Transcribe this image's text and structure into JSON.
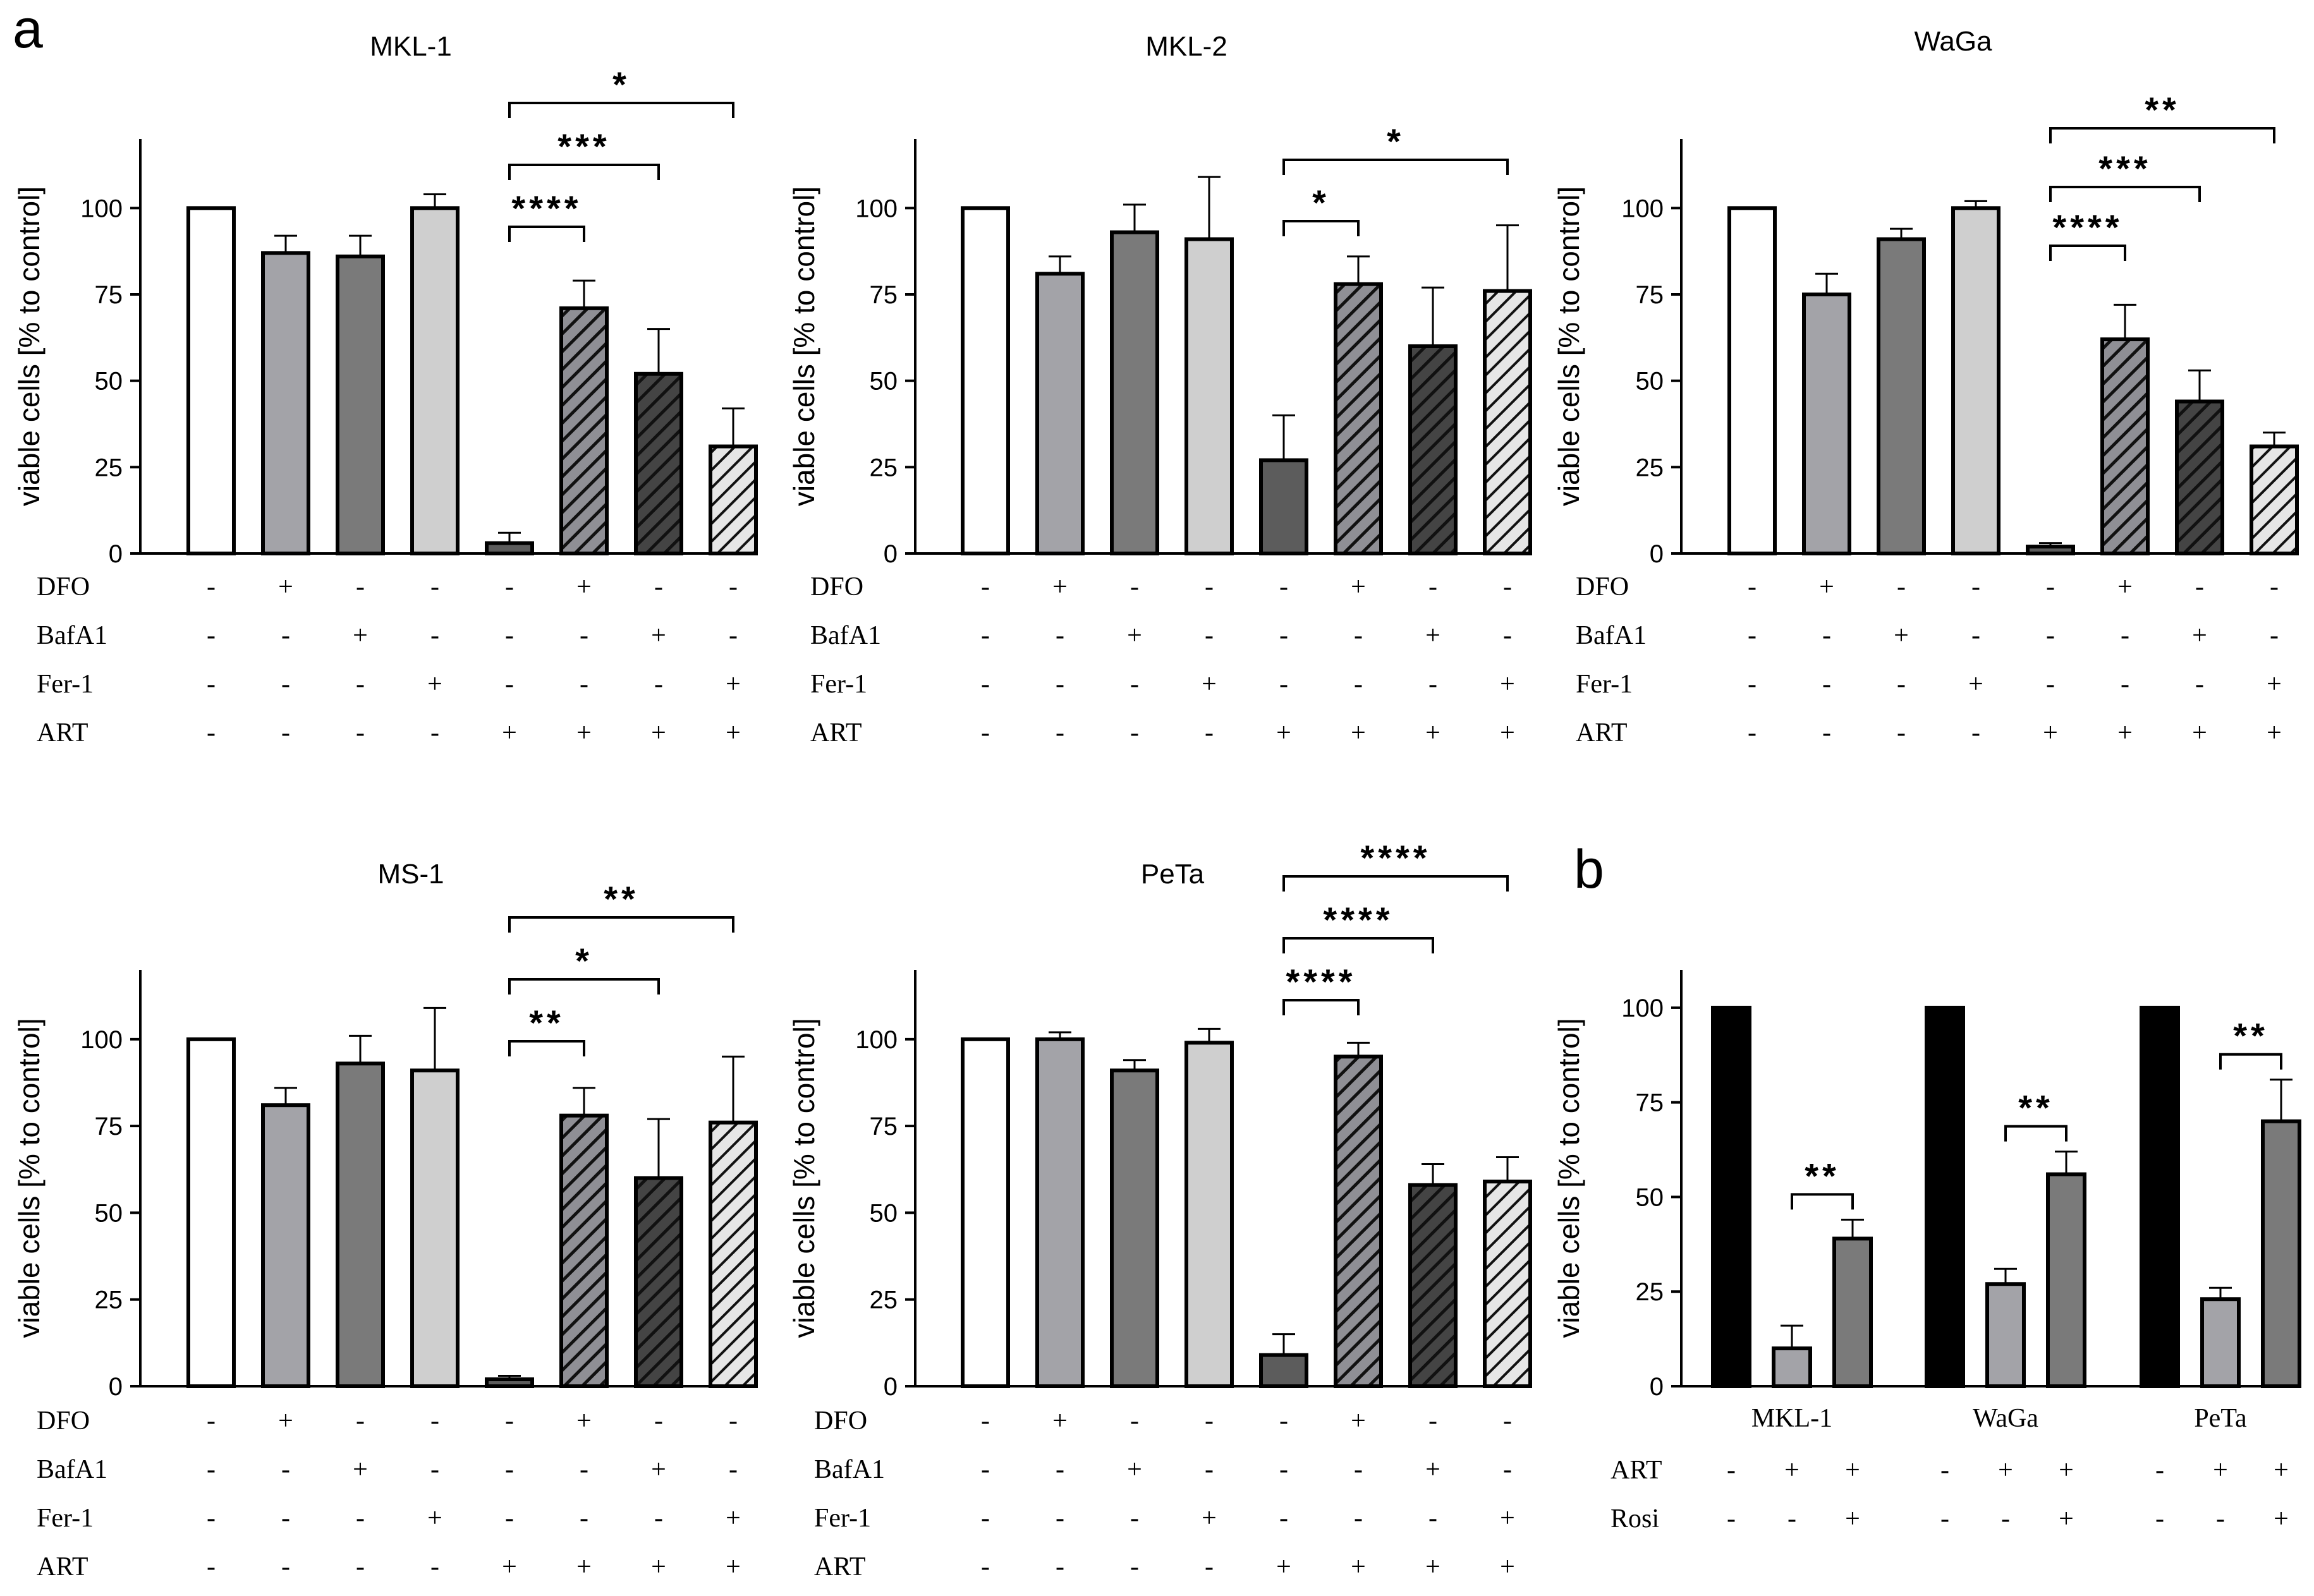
{
  "figure": {
    "panel_labels": [
      "a",
      "b"
    ],
    "colors": {
      "ink": "#000000",
      "white_bar": "#ffffff",
      "light_gray": "#cfcfcf",
      "mid_gray": "#a3a3a8",
      "dark_gray": "#7a7a7a",
      "darker_gray": "#5c5c5c",
      "black_bar": "#000000",
      "hatch_mid": "#8f8f95",
      "hatch_dark": "#444444",
      "hatch_light": "#e2e2e2"
    }
  },
  "chart_data": [
    {
      "panel": "a",
      "type": "bar",
      "title": "MKL-1",
      "ylabel": "viable cells [% to control]",
      "ylim": [
        0,
        120
      ],
      "yticks": [
        0,
        25,
        50,
        75,
        100
      ],
      "conditions": [
        "DFO",
        "BafA1",
        "Fer-1",
        "ART"
      ],
      "condition_signs": [
        [
          "-",
          "+",
          "-",
          "-",
          "-",
          "+",
          "-",
          "-"
        ],
        [
          "-",
          "-",
          "+",
          "-",
          "-",
          "-",
          "+",
          "-"
        ],
        [
          "-",
          "-",
          "-",
          "+",
          "-",
          "-",
          "-",
          "+"
        ],
        [
          "-",
          "-",
          "-",
          "-",
          "+",
          "+",
          "+",
          "+"
        ]
      ],
      "values": [
        100,
        87,
        86,
        100,
        3,
        71,
        52,
        31
      ],
      "errors": [
        0,
        5,
        6,
        4,
        3,
        8,
        13,
        11
      ],
      "bar_styles": [
        "white",
        "mid",
        "dark",
        "light",
        "darker",
        "hatch-mid",
        "hatch-dark",
        "hatch-light"
      ],
      "significance": [
        {
          "from": 4,
          "to": 5,
          "label": "****"
        },
        {
          "from": 4,
          "to": 6,
          "label": "***"
        },
        {
          "from": 4,
          "to": 7,
          "label": "*"
        }
      ]
    },
    {
      "panel": "a",
      "type": "bar",
      "title": "MKL-2",
      "ylabel": "viable cells [% to control]",
      "ylim": [
        0,
        120
      ],
      "yticks": [
        0,
        25,
        50,
        75,
        100
      ],
      "conditions": [
        "DFO",
        "BafA1",
        "Fer-1",
        "ART"
      ],
      "condition_signs": [
        [
          "-",
          "+",
          "-",
          "-",
          "-",
          "+",
          "-",
          "-"
        ],
        [
          "-",
          "-",
          "+",
          "-",
          "-",
          "-",
          "+",
          "-"
        ],
        [
          "-",
          "-",
          "-",
          "+",
          "-",
          "-",
          "-",
          "+"
        ],
        [
          "-",
          "-",
          "-",
          "-",
          "+",
          "+",
          "+",
          "+"
        ]
      ],
      "values": [
        100,
        81,
        93,
        91,
        27,
        78,
        60,
        76
      ],
      "errors": [
        0,
        5,
        8,
        18,
        13,
        8,
        17,
        19
      ],
      "bar_styles": [
        "white",
        "mid",
        "dark",
        "light",
        "darker",
        "hatch-mid",
        "hatch-dark",
        "hatch-light"
      ],
      "significance": [
        {
          "from": 4,
          "to": 5,
          "label": "*"
        },
        {
          "from": 4,
          "to": 7,
          "label": "*"
        }
      ]
    },
    {
      "panel": "a",
      "type": "bar",
      "title": "WaGa",
      "ylabel": "viable cells [% to control]",
      "ylim": [
        0,
        120
      ],
      "yticks": [
        0,
        25,
        50,
        75,
        100
      ],
      "conditions": [
        "DFO",
        "BafA1",
        "Fer-1",
        "ART"
      ],
      "condition_signs": [
        [
          "-",
          "+",
          "-",
          "-",
          "-",
          "+",
          "-",
          "-"
        ],
        [
          "-",
          "-",
          "+",
          "-",
          "-",
          "-",
          "+",
          "-"
        ],
        [
          "-",
          "-",
          "-",
          "+",
          "-",
          "-",
          "-",
          "+"
        ],
        [
          "-",
          "-",
          "-",
          "-",
          "+",
          "+",
          "+",
          "+"
        ]
      ],
      "values": [
        100,
        75,
        91,
        100,
        2,
        62,
        44,
        31
      ],
      "errors": [
        0,
        6,
        3,
        2,
        1,
        10,
        9,
        4
      ],
      "bar_styles": [
        "white",
        "mid",
        "dark",
        "light",
        "darker",
        "hatch-mid",
        "hatch-dark",
        "hatch-light"
      ],
      "significance": [
        {
          "from": 4,
          "to": 5,
          "label": "****"
        },
        {
          "from": 4,
          "to": 6,
          "label": "***"
        },
        {
          "from": 4,
          "to": 7,
          "label": "**"
        }
      ]
    },
    {
      "panel": "a",
      "type": "bar",
      "title": "MS-1",
      "ylabel": "viable cells [% to control]",
      "ylim": [
        0,
        120
      ],
      "yticks": [
        0,
        25,
        50,
        75,
        100
      ],
      "conditions": [
        "DFO",
        "BafA1",
        "Fer-1",
        "ART"
      ],
      "condition_signs": [
        [
          "-",
          "+",
          "-",
          "-",
          "-",
          "+",
          "-",
          "-"
        ],
        [
          "-",
          "-",
          "+",
          "-",
          "-",
          "-",
          "+",
          "-"
        ],
        [
          "-",
          "-",
          "-",
          "+",
          "-",
          "-",
          "-",
          "+"
        ],
        [
          "-",
          "-",
          "-",
          "-",
          "+",
          "+",
          "+",
          "+"
        ]
      ],
      "values": [
        100,
        81,
        93,
        91,
        2,
        78,
        60,
        76
      ],
      "errors": [
        0,
        5,
        8,
        18,
        1,
        8,
        17,
        19
      ],
      "bar_styles": [
        "white",
        "mid",
        "dark",
        "light",
        "darker",
        "hatch-mid",
        "hatch-dark",
        "hatch-light"
      ],
      "significance": [
        {
          "from": 4,
          "to": 5,
          "label": "**"
        },
        {
          "from": 4,
          "to": 6,
          "label": "*"
        },
        {
          "from": 4,
          "to": 7,
          "label": "**"
        }
      ]
    },
    {
      "panel": "a",
      "type": "bar",
      "title": "PeTa",
      "ylabel": "viable cells [% to control]",
      "ylim": [
        0,
        120
      ],
      "yticks": [
        0,
        25,
        50,
        75,
        100
      ],
      "conditions": [
        "DFO",
        "BafA1",
        "Fer-1",
        "ART"
      ],
      "condition_signs": [
        [
          "-",
          "+",
          "-",
          "-",
          "-",
          "+",
          "-",
          "-"
        ],
        [
          "-",
          "-",
          "+",
          "-",
          "-",
          "-",
          "+",
          "-"
        ],
        [
          "-",
          "-",
          "-",
          "+",
          "-",
          "-",
          "-",
          "+"
        ],
        [
          "-",
          "-",
          "-",
          "-",
          "+",
          "+",
          "+",
          "+"
        ]
      ],
      "values": [
        100,
        100,
        91,
        99,
        9,
        95,
        58,
        59
      ],
      "errors": [
        0,
        2,
        3,
        4,
        6,
        4,
        6,
        7
      ],
      "bar_styles": [
        "white",
        "mid",
        "dark",
        "light",
        "darker",
        "hatch-mid",
        "hatch-dark",
        "hatch-light"
      ],
      "significance": [
        {
          "from": 4,
          "to": 5,
          "label": "****"
        },
        {
          "from": 4,
          "to": 6,
          "label": "****"
        },
        {
          "from": 4,
          "to": 7,
          "label": "****"
        }
      ]
    },
    {
      "panel": "b",
      "type": "bar",
      "title": "",
      "ylabel": "viable cells [% to control]",
      "ylim": [
        0,
        110
      ],
      "yticks": [
        0,
        25,
        50,
        75,
        100
      ],
      "groups": [
        "MKL-1",
        "WaGa",
        "PeTa"
      ],
      "conditions": [
        "ART",
        "Rosi"
      ],
      "condition_signs": [
        [
          "-",
          "+",
          "+",
          "-",
          "+",
          "+",
          "-",
          "+",
          "+"
        ],
        [
          "-",
          "-",
          "+",
          "-",
          "-",
          "+",
          "-",
          "-",
          "+"
        ]
      ],
      "values": [
        100,
        10,
        39,
        100,
        27,
        56,
        100,
        23,
        70
      ],
      "errors": [
        0,
        6,
        5,
        0,
        4,
        6,
        0,
        3,
        11
      ],
      "bar_styles": [
        "black",
        "mid",
        "darkb",
        "black",
        "mid",
        "darkb",
        "black",
        "mid",
        "darkb"
      ],
      "significance": [
        {
          "from": 1,
          "to": 2,
          "label": "**"
        },
        {
          "from": 4,
          "to": 5,
          "label": "**"
        },
        {
          "from": 7,
          "to": 8,
          "label": "**"
        }
      ]
    }
  ]
}
